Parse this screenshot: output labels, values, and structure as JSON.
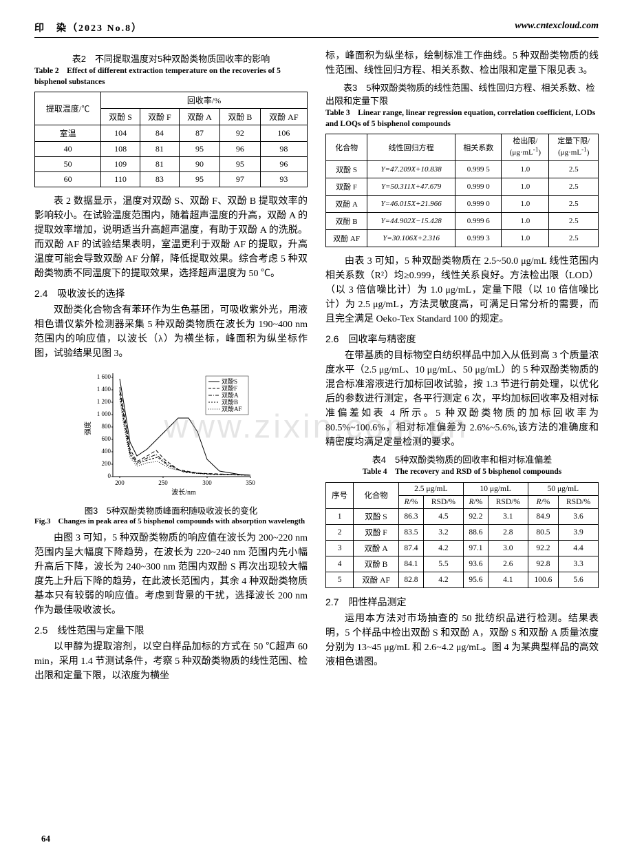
{
  "header": {
    "left": "印　染（2023 No.8）",
    "right": "www.cntexcloud.com"
  },
  "page_number": "64",
  "watermark": "www.zixin.com.cn",
  "left_column": {
    "table2": {
      "caption_cn": "表2　不同提取温度对5种双酚类物质回收率的影响",
      "caption_en": "Table 2　Effect of different extraction temperature on the recoveries of 5 bisphenol substances",
      "header_row1": [
        "提取温度/℃",
        "回收率/%"
      ],
      "header_row2": [
        "双酚 S",
        "双酚 F",
        "双酚 A",
        "双酚 B",
        "双酚 AF"
      ],
      "rows": [
        [
          "室温",
          "104",
          "84",
          "87",
          "92",
          "106"
        ],
        [
          "40",
          "108",
          "81",
          "95",
          "96",
          "98"
        ],
        [
          "50",
          "109",
          "81",
          "90",
          "95",
          "96"
        ],
        [
          "60",
          "110",
          "83",
          "95",
          "97",
          "93"
        ]
      ]
    },
    "para1": "表 2 数据显示，温度对双酚 S、双酚 F、双酚 B 提取效率的影响较小。在试验温度范围内，随着超声温度的升高，双酚 A 的提取效率增加，说明适当升高超声温度，有助于双酚 A 的洗脱。而双酚 AF 的试验结果表明，室温更利于双酚 AF 的提取，升高温度可能会导致双酚 AF 分解，降低提取效果。综合考虑 5 种双酚类物质不同温度下的提取效果，选择超声温度为 50 ℃。",
    "sec24_title": "2.4　吸收波长的选择",
    "sec24_para": "双酚类化合物含有苯环作为生色基团，可吸收紫外光，用液相色谱仪紫外检测器采集 5 种双酚类物质在波长为 190~400 nm 范围内的响应值，以波长（λ）为横坐标，峰面积为纵坐标作图，试验结果见图 3。",
    "fig3": {
      "caption_cn": "图3　5种双酚类物质峰面积随吸收波长的变化",
      "caption_en": "Fig.3　Changes in peak area of 5 bisphenol compounds with absorption wavelength",
      "xlabel": "波长/nm",
      "ylabel": "强度",
      "x_ticks": [
        200,
        250,
        300,
        350
      ],
      "y_ticks": [
        0,
        200,
        400,
        600,
        800,
        "1 000",
        "1 200",
        "1 400",
        "1 600"
      ],
      "legend": [
        "双酚S",
        "双酚F",
        "双酚A",
        "双酚B",
        "双酚AF"
      ],
      "line_styles": [
        "solid",
        "dash",
        "dashdot",
        "shortdash",
        "dot"
      ],
      "color": "#000000",
      "background": "#ffffff"
    },
    "para_after_fig": "由图 3 可知，5 种双酚类物质的响应值在波长为 200~220 nm 范围内呈大幅度下降趋势，在波长为 220~240 nm 范围内先小幅升高后下降，波长为 240~300 nm 范围内双酚 S 再次出现较大幅度先上升后下降的趋势，在此波长范围内，其余 4 种双酚类物质基本只有较弱的响应值。考虑到背景的干扰，选择波长 200 nm 作为最佳吸收波长。",
    "sec25_title": "2.5　线性范围与定量下限",
    "sec25_para": "以甲醇为提取溶剂，以空白样品加标的方式在 50 ℃超声 60 min，采用 1.4 节测试条件，考察 5 种双酚类物质的线性范围、检出限和定量下限，以浓度为横坐"
  },
  "right_column": {
    "para_top": "标，峰面积为纵坐标，绘制标准工作曲线。5 种双酚类物质的线性范围、线性回归方程、相关系数、检出限和定量下限见表 3。",
    "table3": {
      "caption_cn": "表3　5种双酚类物质的线性范围、线性回归方程、相关系数、检出限和定量下限",
      "caption_en": "Table 3　Linear range, linear regression equation, correlation coefficient, LODs and LOQs of 5 bisphenol compounds",
      "headers": [
        "化合物",
        "线性回归方程",
        "相关系数",
        "检出限/\n(μg·mL⁻¹)",
        "定量下限/\n(μg·mL⁻¹)"
      ],
      "rows": [
        [
          "双酚 S",
          "Y=47.209X+10.838",
          "0.999 5",
          "1.0",
          "2.5"
        ],
        [
          "双酚 F",
          "Y=50.311X+47.679",
          "0.999 0",
          "1.0",
          "2.5"
        ],
        [
          "双酚 A",
          "Y=46.015X+21.966",
          "0.999 0",
          "1.0",
          "2.5"
        ],
        [
          "双酚 B",
          "Y=44.902X−15.428",
          "0.999 6",
          "1.0",
          "2.5"
        ],
        [
          "双酚 AF",
          "Y=30.106X+2.316",
          "0.999 3",
          "1.0",
          "2.5"
        ]
      ]
    },
    "para_after_t3": "由表 3 可知，5 种双酚类物质在 2.5~50.0 μg/mL 线性范围内相关系数（R²）均≥0.999，线性关系良好。方法检出限（LOD）（以 3 倍信噪比计）为 1.0 μg/mL，定量下限（以 10 倍信噪比计）为 2.5 μg/mL，方法灵敏度高，可满足日常分析的需要，而且完全满足 Oeko-Tex Standard 100 的规定。",
    "sec26_title": "2.6　回收率与精密度",
    "sec26_para": "在带基质的目标物空白纺织样品中加入从低到高 3 个质量浓度水平（2.5 μg/mL、10 μg/mL、50 μg/mL）的 5 种双酚类物质的混合标准溶液进行加标回收试验，按 1.3 节进行前处理，以优化后的参数进行测定，各平行测定 6 次，平均加标回收率及相对标准偏差如表 4 所示。5 种双酚类物质的加标回收率为 80.5%~100.6%，相对标准偏差为 2.6%~5.6%,该方法的准确度和精密度均满足定量检测的要求。",
    "table4": {
      "caption_cn": "表4　5种双酚类物质的回收率和相对标准偏差",
      "caption_en": "Table 4　The recovery and RSD of 5 bisphenol compounds",
      "header1": [
        "序号",
        "化合物",
        "2.5 μg/mL",
        "10 μg/mL",
        "50 μg/mL"
      ],
      "header2": [
        "R/%",
        "RSD/%",
        "R/%",
        "RSD/%",
        "R/%",
        "RSD/%"
      ],
      "rows": [
        [
          "1",
          "双酚 S",
          "86.3",
          "4.5",
          "92.2",
          "3.1",
          "84.9",
          "3.6"
        ],
        [
          "2",
          "双酚 F",
          "83.5",
          "3.2",
          "88.6",
          "2.8",
          "80.5",
          "3.9"
        ],
        [
          "3",
          "双酚 A",
          "87.4",
          "4.2",
          "97.1",
          "3.0",
          "92.2",
          "4.4"
        ],
        [
          "4",
          "双酚 B",
          "84.1",
          "5.5",
          "93.6",
          "2.6",
          "92.8",
          "3.3"
        ],
        [
          "5",
          "双酚 AF",
          "82.8",
          "4.2",
          "95.6",
          "4.1",
          "100.6",
          "5.6"
        ]
      ]
    },
    "sec27_title": "2.7　阳性样品测定",
    "sec27_para": "运用本方法对市场抽查的 50 批纺织品进行检测。结果表明，5 个样品中检出双酚 S 和双酚 A，双酚 S 和双酚 A 质量浓度分别为 13~45 μg/mL 和 2.6~4.2 μg/mL。图 4 为某典型样品的高效液相色谱图。"
  }
}
